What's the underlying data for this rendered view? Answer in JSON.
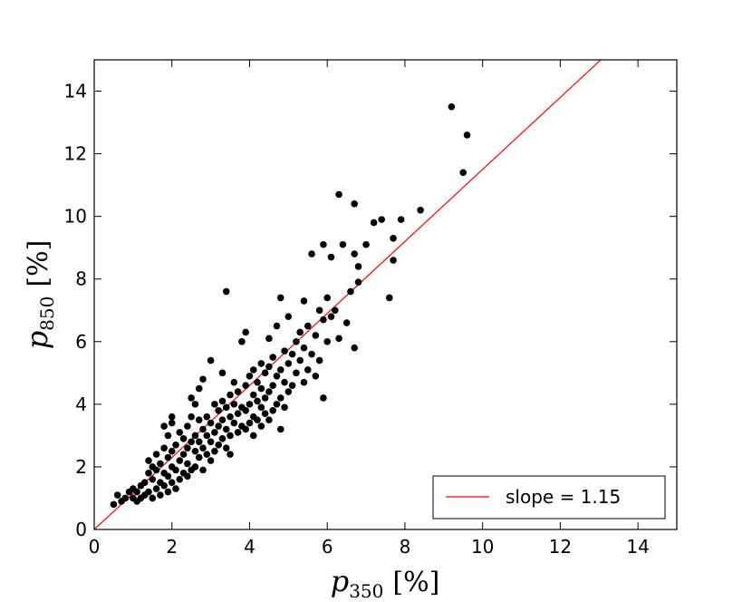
{
  "chart_data": {
    "type": "scatter",
    "title": "",
    "xlabel": {
      "var": "p",
      "sub": "350",
      "unit": "[%]"
    },
    "ylabel": {
      "var": "p",
      "sub": "850",
      "unit": "[%]"
    },
    "xlim": [
      0,
      15
    ],
    "ylim": [
      0,
      15
    ],
    "xticks": [
      0,
      2,
      4,
      6,
      8,
      10,
      12,
      14
    ],
    "yticks": [
      0,
      2,
      4,
      6,
      8,
      10,
      12,
      14
    ],
    "grid": false,
    "legend": {
      "position": "lower-right",
      "label": "slope = 1.15"
    },
    "colors": {
      "points": "#000000",
      "fit_line": "#ff0000"
    },
    "fit_line": {
      "slope": 1.15,
      "intercept": 0
    },
    "points": [
      [
        0.5,
        0.8
      ],
      [
        0.6,
        1.1
      ],
      [
        0.7,
        0.9
      ],
      [
        0.8,
        1.0
      ],
      [
        0.9,
        1.2
      ],
      [
        1.0,
        1.0
      ],
      [
        1.0,
        1.3
      ],
      [
        1.1,
        0.9
      ],
      [
        1.1,
        1.2
      ],
      [
        1.2,
        1.4
      ],
      [
        1.2,
        1.0
      ],
      [
        1.3,
        1.5
      ],
      [
        1.3,
        1.1
      ],
      [
        1.4,
        1.8
      ],
      [
        1.4,
        1.2
      ],
      [
        1.4,
        2.2
      ],
      [
        1.5,
        1.0
      ],
      [
        1.5,
        1.6
      ],
      [
        1.5,
        2.0
      ],
      [
        1.6,
        1.3
      ],
      [
        1.6,
        1.9
      ],
      [
        1.6,
        2.4
      ],
      [
        1.7,
        1.1
      ],
      [
        1.7,
        1.5
      ],
      [
        1.7,
        2.1
      ],
      [
        1.8,
        1.4
      ],
      [
        1.8,
        1.8
      ],
      [
        1.8,
        2.6
      ],
      [
        1.8,
        3.3
      ],
      [
        1.9,
        1.2
      ],
      [
        1.9,
        1.7
      ],
      [
        1.9,
        2.3
      ],
      [
        1.9,
        3.0
      ],
      [
        2.0,
        1.5
      ],
      [
        2.0,
        2.0
      ],
      [
        2.0,
        2.5
      ],
      [
        2.0,
        3.4
      ],
      [
        2.0,
        3.6
      ],
      [
        2.1,
        1.3
      ],
      [
        2.1,
        1.9
      ],
      [
        2.1,
        2.7
      ],
      [
        2.2,
        1.6
      ],
      [
        2.2,
        2.2
      ],
      [
        2.2,
        3.1
      ],
      [
        2.3,
        1.8
      ],
      [
        2.3,
        2.4
      ],
      [
        2.3,
        2.9
      ],
      [
        2.4,
        1.7
      ],
      [
        2.4,
        2.1
      ],
      [
        2.4,
        2.6
      ],
      [
        2.4,
        3.3
      ],
      [
        2.5,
        1.9
      ],
      [
        2.5,
        2.8
      ],
      [
        2.5,
        3.6
      ],
      [
        2.5,
        4.2
      ],
      [
        2.6,
        2.0
      ],
      [
        2.6,
        2.5
      ],
      [
        2.6,
        3.0
      ],
      [
        2.6,
        4.0
      ],
      [
        2.7,
        2.3
      ],
      [
        2.7,
        2.8
      ],
      [
        2.7,
        3.5
      ],
      [
        2.7,
        4.5
      ],
      [
        2.8,
        1.9
      ],
      [
        2.8,
        2.6
      ],
      [
        2.8,
        3.2
      ],
      [
        2.8,
        4.8
      ],
      [
        2.9,
        2.4
      ],
      [
        2.9,
        3.0
      ],
      [
        2.9,
        3.6
      ],
      [
        3.0,
        2.2
      ],
      [
        3.0,
        2.8
      ],
      [
        3.0,
        3.4
      ],
      [
        3.0,
        5.4
      ],
      [
        3.1,
        2.5
      ],
      [
        3.1,
        3.1
      ],
      [
        3.1,
        4.0
      ],
      [
        3.2,
        2.7
      ],
      [
        3.2,
        3.3
      ],
      [
        3.2,
        3.8
      ],
      [
        3.3,
        2.9
      ],
      [
        3.3,
        3.5
      ],
      [
        3.3,
        4.1
      ],
      [
        3.3,
        5.0
      ],
      [
        3.4,
        2.6
      ],
      [
        3.4,
        3.2
      ],
      [
        3.4,
        3.9
      ],
      [
        3.4,
        7.6
      ],
      [
        3.5,
        3.0
      ],
      [
        3.5,
        3.6
      ],
      [
        3.5,
        4.3
      ],
      [
        3.5,
        2.4
      ],
      [
        3.6,
        3.4
      ],
      [
        3.6,
        4.0
      ],
      [
        3.6,
        4.7
      ],
      [
        3.7,
        3.1
      ],
      [
        3.7,
        3.7
      ],
      [
        3.7,
        4.4
      ],
      [
        3.8,
        3.3
      ],
      [
        3.8,
        3.9
      ],
      [
        3.8,
        6.0
      ],
      [
        3.9,
        3.2
      ],
      [
        3.9,
        3.8
      ],
      [
        3.9,
        4.6
      ],
      [
        3.9,
        6.3
      ],
      [
        4.0,
        3.4
      ],
      [
        4.0,
        4.0
      ],
      [
        4.0,
        4.9
      ],
      [
        4.1,
        3.0
      ],
      [
        4.1,
        3.6
      ],
      [
        4.1,
        4.3
      ],
      [
        4.1,
        5.1
      ],
      [
        4.2,
        3.5
      ],
      [
        4.2,
        4.1
      ],
      [
        4.2,
        4.7
      ],
      [
        4.3,
        3.3
      ],
      [
        4.3,
        3.9
      ],
      [
        4.3,
        4.5
      ],
      [
        4.3,
        5.3
      ],
      [
        4.4,
        3.7
      ],
      [
        4.4,
        4.2
      ],
      [
        4.4,
        5.0
      ],
      [
        4.5,
        3.5
      ],
      [
        4.5,
        4.4
      ],
      [
        4.5,
        5.2
      ],
      [
        4.5,
        6.1
      ],
      [
        4.6,
        3.8
      ],
      [
        4.6,
        4.6
      ],
      [
        4.6,
        5.5
      ],
      [
        4.7,
        4.0
      ],
      [
        4.7,
        4.9
      ],
      [
        4.7,
        6.5
      ],
      [
        4.8,
        3.2
      ],
      [
        4.8,
        4.2
      ],
      [
        4.8,
        5.1
      ],
      [
        4.8,
        7.4
      ],
      [
        4.9,
        3.9
      ],
      [
        4.9,
        4.7
      ],
      [
        4.9,
        5.7
      ],
      [
        5.0,
        4.4
      ],
      [
        5.0,
        5.3
      ],
      [
        5.0,
        6.8
      ],
      [
        5.1,
        4.6
      ],
      [
        5.1,
        5.6
      ],
      [
        5.2,
        5.0
      ],
      [
        5.2,
        6.0
      ],
      [
        5.3,
        5.4
      ],
      [
        5.3,
        6.3
      ],
      [
        5.4,
        4.7
      ],
      [
        5.4,
        5.8
      ],
      [
        5.4,
        7.3
      ],
      [
        5.5,
        5.1
      ],
      [
        5.5,
        6.5
      ],
      [
        5.6,
        5.6
      ],
      [
        5.6,
        8.8
      ],
      [
        5.7,
        4.9
      ],
      [
        5.7,
        6.2
      ],
      [
        5.8,
        5.4
      ],
      [
        5.8,
        7.0
      ],
      [
        5.9,
        4.2
      ],
      [
        5.9,
        6.7
      ],
      [
        5.9,
        9.1
      ],
      [
        6.0,
        6.0
      ],
      [
        6.0,
        7.4
      ],
      [
        6.1,
        6.8
      ],
      [
        6.1,
        8.7
      ],
      [
        6.2,
        7.0
      ],
      [
        6.3,
        6.1
      ],
      [
        6.3,
        10.7
      ],
      [
        6.4,
        9.1
      ],
      [
        6.5,
        6.6
      ],
      [
        6.6,
        7.6
      ],
      [
        6.7,
        5.8
      ],
      [
        6.7,
        8.8
      ],
      [
        6.7,
        10.4
      ],
      [
        6.8,
        7.9
      ],
      [
        6.8,
        8.4
      ],
      [
        7.0,
        9.1
      ],
      [
        7.2,
        9.8
      ],
      [
        7.4,
        9.9
      ],
      [
        7.6,
        7.4
      ],
      [
        7.7,
        8.6
      ],
      [
        7.7,
        9.3
      ],
      [
        7.9,
        9.9
      ],
      [
        8.4,
        10.2
      ],
      [
        9.2,
        13.5
      ],
      [
        9.5,
        11.4
      ],
      [
        9.6,
        12.6
      ]
    ]
  }
}
